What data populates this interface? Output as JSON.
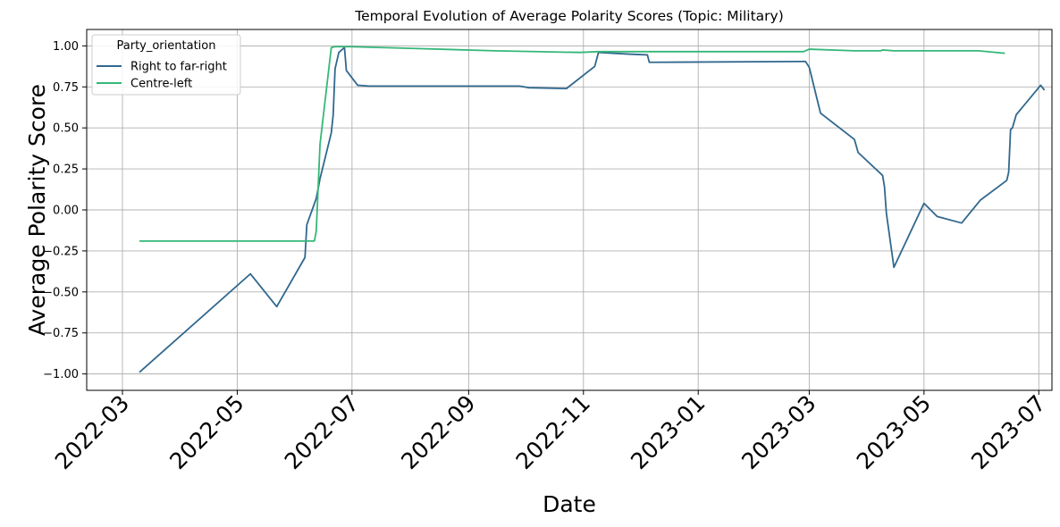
{
  "chart_data": {
    "type": "line",
    "title": "Temporal Evolution of Average Polarity Scores (Topic: Military)",
    "xlabel": "Date",
    "ylabel": "Average Polarity Score",
    "xlim": [
      "2022-02-10",
      "2023-07-08"
    ],
    "ylim": [
      -1.1,
      1.1
    ],
    "x_ticks": [
      "2022-03-01",
      "2022-05-01",
      "2022-07-01",
      "2022-09-01",
      "2022-11-01",
      "2023-01-01",
      "2023-03-01",
      "2023-05-01",
      "2023-07-01"
    ],
    "x_tick_labels": [
      "2022-03",
      "2022-05",
      "2022-07",
      "2022-09",
      "2022-11",
      "2023-01",
      "2023-03",
      "2023-05",
      "2023-07"
    ],
    "y_ticks": [
      -1.0,
      -0.75,
      -0.5,
      -0.25,
      0.0,
      0.25,
      0.5,
      0.75,
      1.0
    ],
    "y_tick_labels": [
      "−1.00",
      "−0.75",
      "−0.50",
      "−0.25",
      "0.00",
      "0.25",
      "0.50",
      "0.75",
      "1.00"
    ],
    "grid": true,
    "legend": {
      "title": "Party_orientation",
      "placement": "top-left"
    },
    "series": [
      {
        "name": "Right to far-right",
        "color": "#31688e",
        "points": [
          [
            "2022-03-10",
            -0.99
          ],
          [
            "2022-05-08",
            -0.39
          ],
          [
            "2022-05-22",
            -0.59
          ],
          [
            "2022-06-06",
            -0.29
          ],
          [
            "2022-06-07",
            -0.09
          ],
          [
            "2022-06-12",
            0.07
          ],
          [
            "2022-06-14",
            0.19
          ],
          [
            "2022-06-20",
            0.47
          ],
          [
            "2022-06-21",
            0.58
          ],
          [
            "2022-06-22",
            0.86
          ],
          [
            "2022-06-24",
            0.96
          ],
          [
            "2022-06-27",
            0.99
          ],
          [
            "2022-06-28",
            0.85
          ],
          [
            "2022-07-04",
            0.76
          ],
          [
            "2022-07-10",
            0.755
          ],
          [
            "2022-09-28",
            0.755
          ],
          [
            "2022-10-03",
            0.745
          ],
          [
            "2022-10-23",
            0.74
          ],
          [
            "2022-11-07",
            0.875
          ],
          [
            "2022-11-09",
            0.96
          ],
          [
            "2022-11-25",
            0.95
          ],
          [
            "2022-12-05",
            0.945
          ],
          [
            "2022-12-06",
            0.9
          ],
          [
            "2023-02-27",
            0.905
          ],
          [
            "2023-03-01",
            0.87
          ],
          [
            "2023-03-07",
            0.59
          ],
          [
            "2023-03-25",
            0.43
          ],
          [
            "2023-03-27",
            0.35
          ],
          [
            "2023-04-09",
            0.21
          ],
          [
            "2023-04-10",
            0.14
          ],
          [
            "2023-04-11",
            -0.02
          ],
          [
            "2023-04-15",
            -0.35
          ],
          [
            "2023-05-01",
            0.04
          ],
          [
            "2023-05-08",
            -0.04
          ],
          [
            "2023-05-21",
            -0.08
          ],
          [
            "2023-05-31",
            0.06
          ],
          [
            "2023-06-14",
            0.18
          ],
          [
            "2023-06-15",
            0.23
          ],
          [
            "2023-06-16",
            0.49
          ],
          [
            "2023-06-17",
            0.5
          ],
          [
            "2023-06-19",
            0.58
          ],
          [
            "2023-07-02",
            0.76
          ],
          [
            "2023-07-04",
            0.73
          ]
        ]
      },
      {
        "name": "Centre-left",
        "color": "#35b779",
        "points": [
          [
            "2022-03-10",
            -0.19
          ],
          [
            "2022-06-11",
            -0.19
          ],
          [
            "2022-06-12",
            -0.13
          ],
          [
            "2022-06-14",
            0.4
          ],
          [
            "2022-06-20",
            0.99
          ],
          [
            "2022-06-22",
            0.995
          ],
          [
            "2022-06-30",
            0.995
          ],
          [
            "2022-08-01",
            0.985
          ],
          [
            "2022-09-15",
            0.97
          ],
          [
            "2022-10-30",
            0.96
          ],
          [
            "2022-11-09",
            0.965
          ],
          [
            "2023-02-26",
            0.965
          ],
          [
            "2023-03-01",
            0.98
          ],
          [
            "2023-03-25",
            0.97
          ],
          [
            "2023-04-08",
            0.97
          ],
          [
            "2023-04-09",
            0.975
          ],
          [
            "2023-04-15",
            0.97
          ],
          [
            "2023-05-30",
            0.97
          ],
          [
            "2023-06-13",
            0.955
          ]
        ]
      }
    ]
  }
}
